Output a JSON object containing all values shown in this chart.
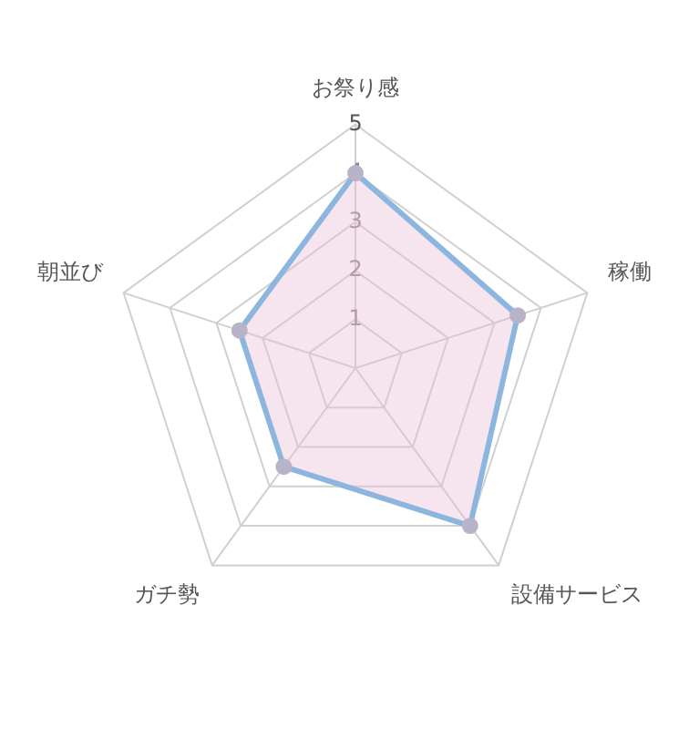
{
  "chart_data": {
    "type": "radar",
    "categories": [
      "お祭り感",
      "稼働",
      "設備サービス",
      "ガチ勢",
      "朝並び"
    ],
    "series": [
      {
        "color": "#8db6de",
        "values": [
          4,
          3.5,
          4,
          2.5,
          2.5
        ]
      }
    ],
    "ylim": [
      0,
      5
    ],
    "yticks": [
      1,
      2,
      3,
      4,
      5
    ],
    "grid": true,
    "legend": false,
    "marker": "circle"
  }
}
